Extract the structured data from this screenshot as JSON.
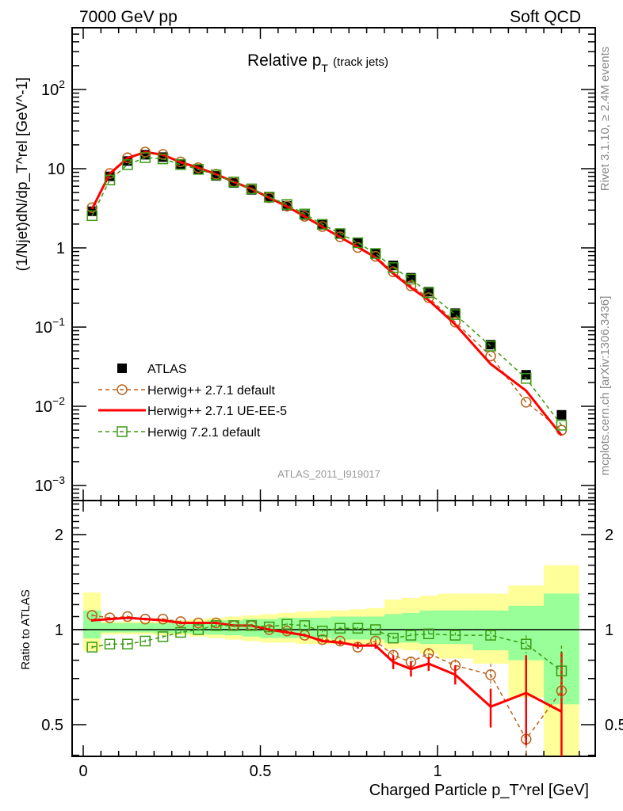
{
  "header": {
    "left": "7000 GeV pp",
    "right": "Soft QCD"
  },
  "side": {
    "rivet": "Rivet 3.1.10, ≥ 2.4M events",
    "mcplots": "mcplots.cern.ch [arXiv:1306.3436]"
  },
  "colors": {
    "atlas": "#000000",
    "herwigpp_default": "#b8621b",
    "herwigpp_ueee5": "#ff0000",
    "herwig7": "#3a9a14",
    "band_total": "#ffff99",
    "band_stat": "#99ff99"
  },
  "chart_data": [
    {
      "type": "scatter",
      "title": "Relative p_T (track jets)",
      "title_main": "Relative p",
      "title_sub": "T",
      "title_note": "(track jets)",
      "watermark": "ATLAS_2011_I919017",
      "ylabel": "(1/Njet)dN/dp_T^rel [GeV^-1]",
      "yscale": "log",
      "ylim": [
        0.00065,
        600
      ],
      "yticks": [
        {
          "v": 100,
          "base": "10",
          "exp": "2"
        },
        {
          "v": 10,
          "base": "10",
          "exp": ""
        },
        {
          "v": 1,
          "base": "1",
          "exp": ""
        },
        {
          "v": 0.1,
          "base": "10",
          "exp": "−1"
        },
        {
          "v": 0.01,
          "base": "10",
          "exp": "−2"
        },
        {
          "v": 0.001,
          "base": "10",
          "exp": "−3"
        }
      ],
      "legend_placement": "bottom-left",
      "x": [
        0.025,
        0.075,
        0.125,
        0.175,
        0.225,
        0.275,
        0.325,
        0.375,
        0.425,
        0.475,
        0.525,
        0.575,
        0.625,
        0.675,
        0.725,
        0.775,
        0.825,
        0.875,
        0.925,
        0.975,
        1.05,
        1.15,
        1.25,
        1.35
      ],
      "bin_edges": [
        0,
        0.05,
        0.1,
        0.15,
        0.2,
        0.25,
        0.3,
        0.35,
        0.4,
        0.45,
        0.5,
        0.55,
        0.6,
        0.65,
        0.7,
        0.75,
        0.8,
        0.85,
        0.9,
        0.95,
        1.0,
        1.1,
        1.2,
        1.3,
        1.4
      ],
      "series": [
        {
          "name": "ATLAS",
          "marker": "filled-square",
          "values": [
            2.9,
            8.0,
            12.5,
            15,
            14,
            11.5,
            9.8,
            8.1,
            6.6,
            5.4,
            4.3,
            3.4,
            2.6,
            2.0,
            1.5,
            1.15,
            0.85,
            0.6,
            0.42,
            0.28,
            0.15,
            0.06,
            0.025,
            0.0078
          ]
        },
        {
          "name": "Herwig++ 2.7.1 default",
          "marker": "open-circle",
          "line": "dashed"
        },
        {
          "name": "Herwig++ 2.7.1 UE-EE-5",
          "marker": "none",
          "line": "solid"
        },
        {
          "name": "Herwig 7.2.1 default",
          "marker": "open-square",
          "line": "dashed"
        }
      ]
    },
    {
      "type": "line",
      "ylabel": "Ratio to ATLAS",
      "yscale": "log",
      "ylim": [
        0.4,
        2.55
      ],
      "yticks": [
        "2",
        "1",
        "0.5"
      ],
      "ytick_values": [
        2,
        1,
        0.5
      ],
      "xlabel": "Charged Particle p_T^rel [GeV]",
      "xlabel_main": "Charged Particle p",
      "xlabel_sub": "T",
      "xlabel_rest": "el [GeV]",
      "xlim": [
        -0.03,
        1.447
      ],
      "xticks": [
        "0",
        "0.5",
        "1"
      ],
      "xtick_values": [
        0,
        0.5,
        1
      ],
      "band_total": [
        [
          0.856,
          1.31
        ],
        [
          0.966,
          1.06
        ],
        [
          0.966,
          1.06
        ],
        [
          0.966,
          1.06
        ],
        [
          0.96,
          1.06
        ],
        [
          0.96,
          1.07
        ],
        [
          0.95,
          1.08
        ],
        [
          0.94,
          1.09
        ],
        [
          0.93,
          1.1
        ],
        [
          0.92,
          1.11
        ],
        [
          0.91,
          1.12
        ],
        [
          0.91,
          1.13
        ],
        [
          0.9,
          1.14
        ],
        [
          0.9,
          1.15
        ],
        [
          0.9,
          1.15
        ],
        [
          0.9,
          1.16
        ],
        [
          0.9,
          1.17
        ],
        [
          0.87,
          1.245
        ],
        [
          0.86,
          1.26
        ],
        [
          0.84,
          1.28
        ],
        [
          0.81,
          1.3
        ],
        [
          0.78,
          1.3
        ],
        [
          0.61,
          1.38
        ],
        [
          0.38,
          1.6
        ]
      ],
      "band_stat": [
        [
          0.938,
          1.15
        ],
        [
          0.98,
          1.05
        ],
        [
          0.98,
          1.05
        ],
        [
          0.98,
          1.05
        ],
        [
          0.975,
          1.05
        ],
        [
          0.975,
          1.06
        ],
        [
          0.97,
          1.06
        ],
        [
          0.965,
          1.07
        ],
        [
          0.96,
          1.07
        ],
        [
          0.95,
          1.08
        ],
        [
          0.94,
          1.08
        ],
        [
          0.94,
          1.09
        ],
        [
          0.94,
          1.09
        ],
        [
          0.94,
          1.09
        ],
        [
          0.93,
          1.1
        ],
        [
          0.93,
          1.1
        ],
        [
          0.93,
          1.1
        ],
        [
          0.91,
          1.12
        ],
        [
          0.91,
          1.13
        ],
        [
          0.9,
          1.15
        ],
        [
          0.9,
          1.15
        ],
        [
          0.86,
          1.15
        ],
        [
          0.8,
          1.19
        ],
        [
          0.58,
          1.3
        ]
      ],
      "series": [
        {
          "name": "Herwig++ 2.7.1 default",
          "ratio": [
            1.11,
            1.09,
            1.1,
            1.08,
            1.08,
            1.06,
            1.05,
            1.05,
            1.03,
            1.03,
            1.0,
            0.99,
            0.96,
            0.93,
            0.92,
            0.88,
            0.92,
            0.83,
            0.79,
            0.84,
            0.77,
            0.72,
            0.45,
            0.64
          ],
          "err": [
            0.01,
            0.01,
            0.01,
            0.01,
            0.01,
            0.01,
            0.01,
            0.01,
            0.01,
            0.01,
            0.01,
            0.01,
            0.01,
            0.01,
            0.01,
            0.015,
            0.015,
            0.03,
            0.03,
            0.035,
            0.035,
            0.06,
            0.1,
            0.25
          ]
        },
        {
          "name": "Herwig++ 2.7.1 UE-EE-5",
          "ratio": [
            1.07,
            1.08,
            1.09,
            1.08,
            1.07,
            1.05,
            1.05,
            1.05,
            1.03,
            1.03,
            1.0,
            0.98,
            0.96,
            0.92,
            0.91,
            0.89,
            0.89,
            0.79,
            0.75,
            0.78,
            0.72,
            0.57,
            0.63,
            0.55
          ],
          "err": [
            0.01,
            0.01,
            0.01,
            0.01,
            0.01,
            0.01,
            0.01,
            0.01,
            0.01,
            0.01,
            0.01,
            0.01,
            0.01,
            0.01,
            0.015,
            0.02,
            0.02,
            0.04,
            0.04,
            0.04,
            0.05,
            0.08,
            0.2,
            0.3
          ]
        },
        {
          "name": "Herwig 7.2.1 default",
          "ratio": [
            0.88,
            0.9,
            0.9,
            0.92,
            0.95,
            0.98,
            1.0,
            1.03,
            1.03,
            1.03,
            1.02,
            1.04,
            1.03,
            0.99,
            1.01,
            1.01,
            1.0,
            0.94,
            0.96,
            0.97,
            0.96,
            0.96,
            0.9,
            0.74
          ],
          "err": [
            0.01,
            0.01,
            0.01,
            0.01,
            0.01,
            0.01,
            0.01,
            0.01,
            0.01,
            0.01,
            0.01,
            0.01,
            0.01,
            0.01,
            0.01,
            0.01,
            0.01,
            0.015,
            0.015,
            0.02,
            0.02,
            0.03,
            0.06,
            0.15
          ]
        }
      ]
    }
  ]
}
